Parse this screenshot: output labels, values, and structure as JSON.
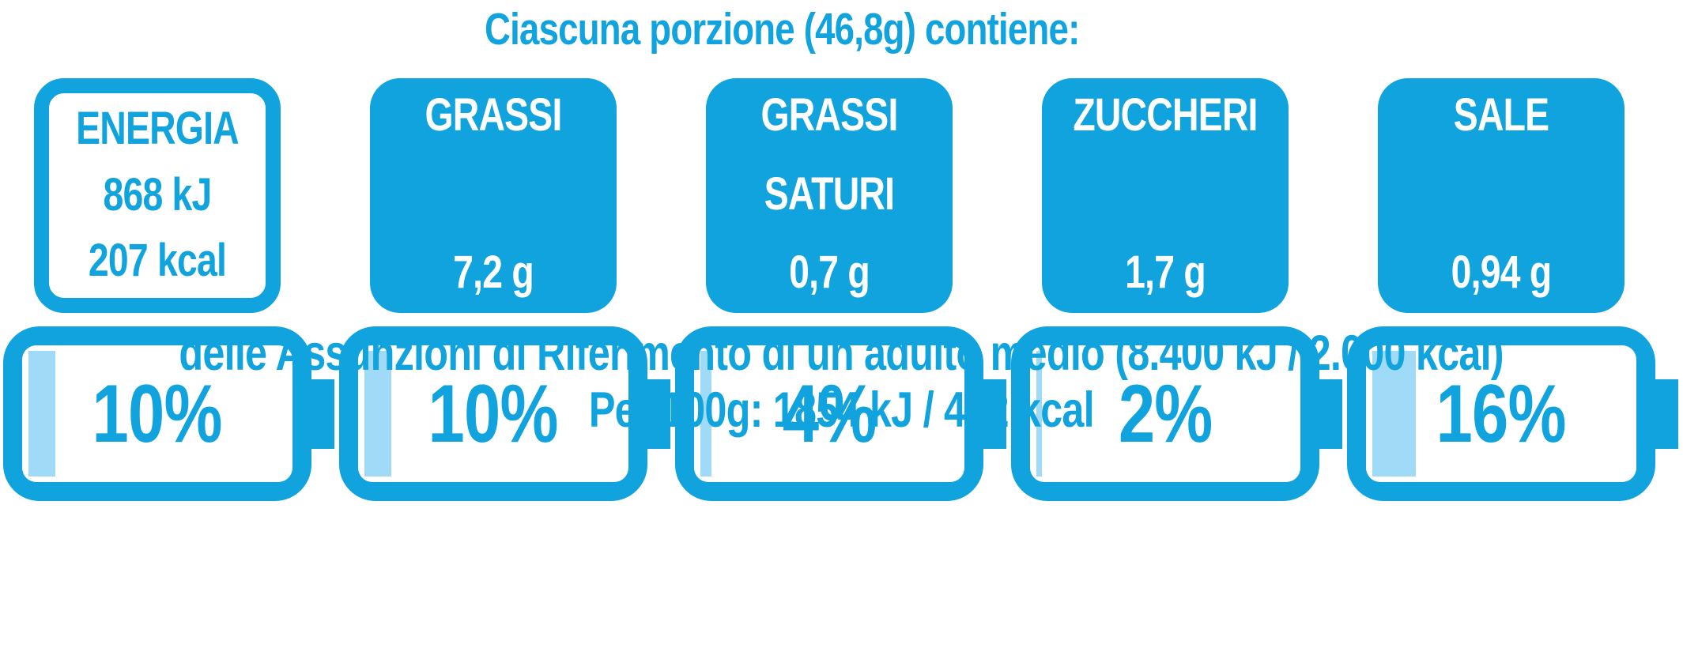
{
  "colors": {
    "blue": "#10a3dd",
    "light_blue_fill": "#9fdaf6",
    "background": "#ffffff"
  },
  "header": {
    "title": "Ciascuna porzione (46,8g) contiene:"
  },
  "nutrients": [
    {
      "id": "energia",
      "title": "ENERGIA",
      "title2": "",
      "value1": "868 kJ",
      "value2": "207 kcal",
      "percent": "10%"
    },
    {
      "id": "grassi",
      "title": "GRASSI",
      "title2": "",
      "value1": "7,2 g",
      "value2": "",
      "percent": "10%"
    },
    {
      "id": "grassi-saturi",
      "title": "GRASSI",
      "title2": "SATURI",
      "value1": "0,7 g",
      "value2": "",
      "percent": "4%"
    },
    {
      "id": "zuccheri",
      "title": "ZUCCHERI",
      "title2": "",
      "value1": "1,7 g",
      "value2": "",
      "percent": "2%"
    },
    {
      "id": "sale",
      "title": "SALE",
      "title2": "",
      "value1": "0,94 g",
      "value2": "",
      "percent": "16%"
    }
  ],
  "footer": {
    "line1": "delle Assunzioni di Riferimento di un adulto medio (8.400 kJ / 2.000 kcal)",
    "line2": "Per 100g: 1854 kJ / 442 kcal"
  },
  "chart_data": {
    "type": "bar",
    "title": "Ciascuna porzione (46,8g) contiene:",
    "categories": [
      "ENERGIA",
      "GRASSI",
      "GRASSI SATURI",
      "ZUCCHERI",
      "SALE"
    ],
    "amounts_per_portion": [
      "868 kJ / 207 kcal",
      "7,2 g",
      "0,7 g",
      "1,7 g",
      "0,94 g"
    ],
    "series": [
      {
        "name": "% delle Assunzioni di Riferimento",
        "values": [
          10,
          10,
          4,
          2,
          16
        ]
      }
    ],
    "value_labels": [
      "10%",
      "10%",
      "4%",
      "2%",
      "16%"
    ],
    "ylim": [
      0,
      100
    ],
    "reference_note": "delle Assunzioni di Riferimento di un adulto medio (8.400 kJ / 2.000 kcal)",
    "per_100g": "Per 100g: 1854 kJ / 442 kcal"
  }
}
